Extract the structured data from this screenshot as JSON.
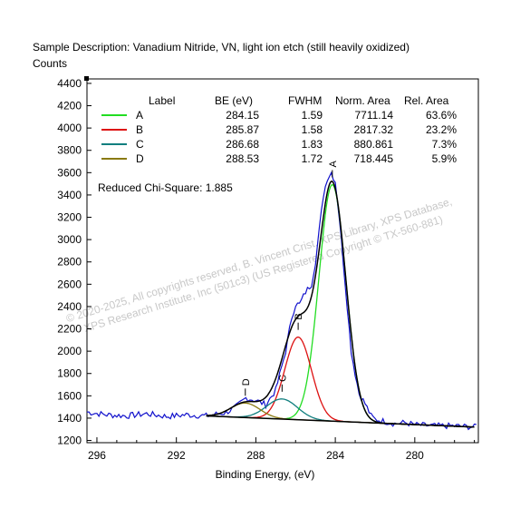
{
  "chart_data": {
    "type": "line",
    "title": "Sample Description:  Vanadium Nitride, VN, light ion etch (still heavily oxidized)",
    "ylabel": "Counts",
    "xlabel": "Binding Energy, (eV)",
    "x_reversed": true,
    "xlim": [
      296.5,
      276.8
    ],
    "ylim": [
      1180,
      4440
    ],
    "xticks": [
      296,
      292,
      288,
      284,
      280
    ],
    "yticks": [
      1200,
      1400,
      1600,
      1800,
      2000,
      2200,
      2400,
      2600,
      2800,
      3000,
      3200,
      3400,
      3600,
      3800,
      4000,
      4200,
      4400
    ],
    "table": {
      "headers": [
        "Label",
        "BE (eV)",
        "FWHM",
        "Norm. Area",
        "Rel. Area"
      ],
      "rows": [
        {
          "label": "A",
          "be": "284.15",
          "fwhm": "1.59",
          "area": "7711.14",
          "rel": "63.6%",
          "color": "#22dd22"
        },
        {
          "label": "B",
          "be": "285.87",
          "fwhm": "1.58",
          "area": "2817.32",
          "rel": "23.2%",
          "color": "#dd1111"
        },
        {
          "label": "C",
          "be": "286.68",
          "fwhm": "1.83",
          "area": "880.861",
          "rel": "7.3%",
          "color": "#117f7f"
        },
        {
          "label": "D",
          "be": "288.53",
          "fwhm": "1.72",
          "area": "718.445",
          "rel": "5.9%",
          "color": "#8a7a10"
        }
      ]
    },
    "chi_square": "Reduced Chi-Square: 1.885",
    "watermark": [
      "© 2020-2025,  All copyrights reserved,   B. Vincent Crist, XPS Library, XPS Database,",
      "XPS Research Institute, Inc (501c3)   (US Registered Copyright © TX-560-881)"
    ],
    "background": {
      "x": [
        290.5,
        277.0
      ],
      "y": [
        1420,
        1320
      ]
    },
    "series": [
      {
        "name": "A",
        "center": 284.15,
        "fwhm": 1.59,
        "height": 2120,
        "color": "#22dd22"
      },
      {
        "name": "B",
        "center": 285.87,
        "fwhm": 1.58,
        "height": 740,
        "color": "#dd1111"
      },
      {
        "name": "C",
        "center": 286.68,
        "fwhm": 1.83,
        "height": 180,
        "color": "#117f7f"
      },
      {
        "name": "D",
        "center": 288.53,
        "fwhm": 1.72,
        "height": 130,
        "color": "#8a7a10"
      }
    ],
    "raw_data": {
      "x": [
        296.5,
        295.5,
        294.5,
        293.5,
        292.5,
        291.5,
        290.5,
        289.5,
        289.0,
        288.5,
        288.0,
        287.5,
        287.0,
        286.5,
        286.2,
        286.0,
        285.8,
        285.5,
        285.2,
        285.0,
        284.8,
        284.6,
        284.4,
        284.2,
        284.1,
        284.0,
        283.8,
        283.6,
        283.4,
        283.2,
        283.0,
        282.8,
        282.5,
        282.2,
        282.0,
        281.5,
        281.0,
        280.5,
        280.0,
        279.0,
        278.0,
        277.0,
        276.8
      ],
      "y": [
        1455,
        1430,
        1420,
        1440,
        1415,
        1430,
        1420,
        1450,
        1500,
        1580,
        1560,
        1520,
        1650,
        2000,
        2300,
        2420,
        2420,
        2530,
        2600,
        2800,
        3100,
        3400,
        3550,
        3600,
        3560,
        3520,
        3200,
        2800,
        2400,
        2000,
        1800,
        1620,
        1530,
        1420,
        1390,
        1370,
        1350,
        1360,
        1340,
        1330,
        1330,
        1320,
        1350
      ]
    },
    "peak_marker_labels": [
      "A",
      "B",
      "C",
      "D"
    ]
  }
}
